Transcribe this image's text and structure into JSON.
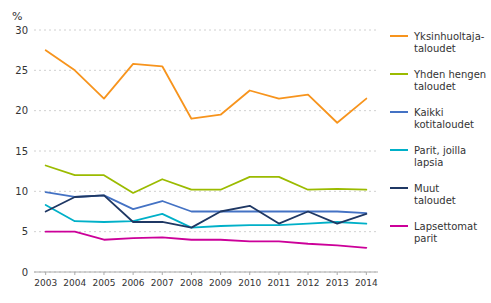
{
  "chart_data": {
    "type": "line",
    "y_label": "%",
    "x": [
      2003,
      2004,
      2005,
      2006,
      2007,
      2008,
      2009,
      2010,
      2011,
      2012,
      2013,
      2014
    ],
    "xlim": [
      2002.6,
      2014.4
    ],
    "xticks": [
      2003,
      2004,
      2005,
      2006,
      2007,
      2008,
      2009,
      2010,
      2011,
      2012,
      2013,
      2014
    ],
    "ylim": [
      0,
      30
    ],
    "yticks": [
      0,
      5,
      10,
      15,
      20,
      25,
      30
    ],
    "grid": true,
    "legend": "right",
    "series": [
      {
        "name": "Yksinhuoltaja-\ntaloudet",
        "color": "#F7941D",
        "values": [
          27.5,
          25.0,
          21.5,
          25.8,
          25.5,
          19.0,
          19.5,
          22.5,
          21.5,
          22.0,
          18.5,
          21.5
        ]
      },
      {
        "name": "Yhden hengen\ntaloudet",
        "color": "#9BBB00",
        "values": [
          13.2,
          12.0,
          12.0,
          9.8,
          11.5,
          10.2,
          10.2,
          11.8,
          11.8,
          10.2,
          10.3,
          10.2
        ]
      },
      {
        "name": "Kaikki\nkotitaloudet",
        "color": "#4472C4",
        "values": [
          9.9,
          9.3,
          9.5,
          7.8,
          8.8,
          7.5,
          7.5,
          7.5,
          7.5,
          7.5,
          7.5,
          7.3
        ]
      },
      {
        "name": "Parit, joilla\nlapsia",
        "color": "#00B0C8",
        "values": [
          8.3,
          6.3,
          6.2,
          6.3,
          7.2,
          5.5,
          5.7,
          5.8,
          5.8,
          6.0,
          6.2,
          6.0
        ]
      },
      {
        "name": "Muut\ntaloudet",
        "color": "#1F3864",
        "values": [
          7.5,
          9.3,
          9.5,
          6.2,
          6.2,
          5.5,
          7.5,
          8.2,
          6.0,
          7.5,
          6.0,
          7.2
        ]
      },
      {
        "name": "Lapsettomat\nparit",
        "color": "#CC0099",
        "values": [
          5.0,
          5.0,
          4.0,
          4.2,
          4.3,
          4.0,
          4.0,
          3.8,
          3.8,
          3.5,
          3.3,
          3.0
        ]
      }
    ]
  }
}
